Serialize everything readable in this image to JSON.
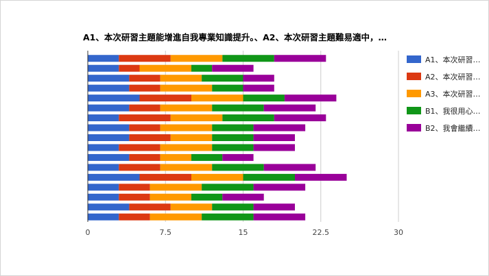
{
  "chart_data": {
    "type": "bar",
    "orientation": "horizontal",
    "stacked": true,
    "title": "A1、本次研習主題能增進自我專業知識提升。、A2、本次研習主題難易適中，…",
    "xlim": [
      0,
      30
    ],
    "x_ticks": [
      "0",
      "7.5",
      "15",
      "22.5",
      "30"
    ],
    "grid": true,
    "legend_position": "right",
    "categories": [
      "",
      "",
      "",
      "",
      "",
      "",
      "",
      "",
      "",
      "",
      "",
      "",
      "",
      "",
      "",
      "",
      ""
    ],
    "series": [
      {
        "name": "A1、本次研習…",
        "color": "#3366cc",
        "values": [
          3,
          3,
          4,
          4,
          5,
          4,
          3,
          4,
          4,
          3,
          4,
          3,
          5,
          3,
          3,
          4,
          3
        ]
      },
      {
        "name": "A2、本次研習…",
        "color": "#dc3912",
        "values": [
          5,
          2,
          3,
          3,
          5,
          3,
          5,
          3,
          4,
          4,
          3,
          4,
          5,
          3,
          3,
          4,
          3
        ]
      },
      {
        "name": "A3、本次研習…",
        "color": "#ff9900",
        "values": [
          5,
          5,
          4,
          5,
          5,
          5,
          5,
          5,
          4,
          5,
          3,
          5,
          5,
          5,
          4,
          4,
          5
        ]
      },
      {
        "name": "B1、我很用心…",
        "color": "#109618",
        "values": [
          5,
          2,
          4,
          3,
          4,
          5,
          5,
          4,
          4,
          4,
          3,
          5,
          5,
          5,
          3,
          4,
          5
        ]
      },
      {
        "name": "B2、我會繼續…",
        "color": "#990099",
        "values": [
          5,
          4,
          3,
          3,
          5,
          5,
          5,
          5,
          4,
          4,
          3,
          5,
          5,
          5,
          4,
          4,
          5
        ]
      }
    ]
  }
}
